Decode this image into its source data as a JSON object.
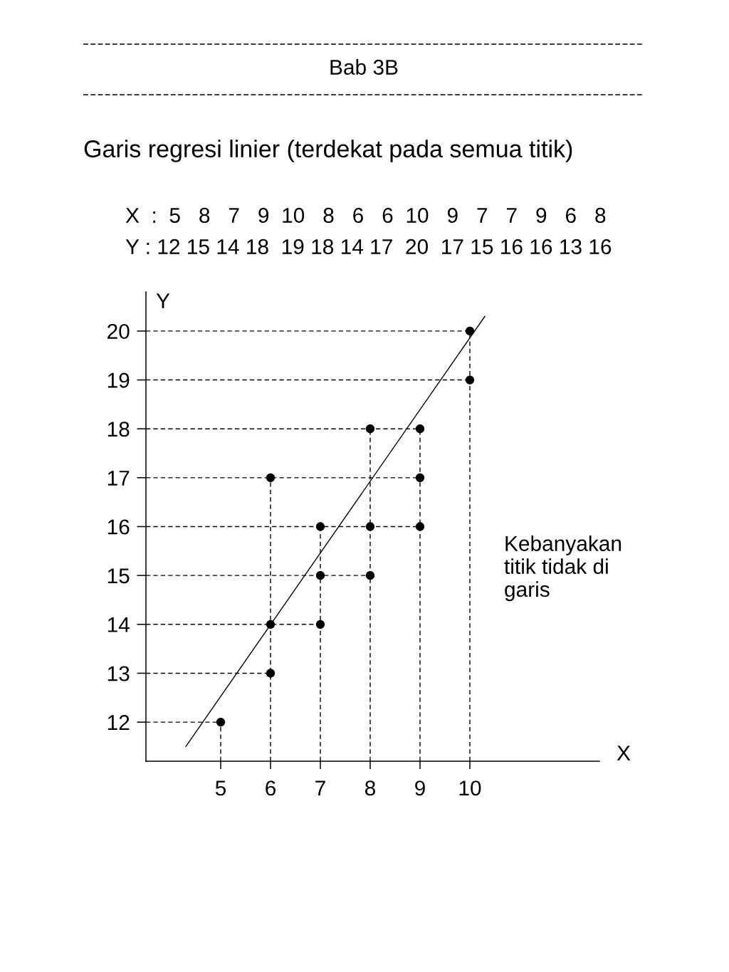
{
  "chart_data": {
    "type": "scatter",
    "title": "Bab 3B",
    "subtitle": "Garis regresi linier (terdekat pada semua titik)",
    "xlabel": "X",
    "ylabel": "Y",
    "series": [
      {
        "color": "#000000",
        "x": [
          5,
          8,
          7,
          9,
          10,
          8,
          6,
          6,
          10,
          9,
          7,
          7,
          9,
          6,
          8
        ],
        "values": [
          12,
          15,
          14,
          18,
          19,
          18,
          14,
          17,
          20,
          17,
          15,
          16,
          16,
          13,
          16
        ]
      },
      {
        "type": "line",
        "color": "#000000",
        "marker": "none",
        "x": [
          4.3,
          10.3
        ],
        "values": [
          11.5,
          20.3
        ]
      }
    ],
    "marker": "circle",
    "xlim": [
      3.5,
      12.6
    ],
    "ylim": [
      11.2,
      20.8
    ],
    "xticks": [
      5,
      6,
      7,
      8,
      9,
      10
    ],
    "yticks": [
      12,
      13,
      14,
      15,
      16,
      17,
      18,
      19,
      20
    ],
    "ref_lines": [
      {
        "axis": "y",
        "value": 12,
        "line_style": "dashed",
        "color": "#000000"
      },
      {
        "axis": "y",
        "value": 13,
        "line_style": "dashed",
        "color": "#000000"
      },
      {
        "axis": "y",
        "value": 14,
        "line_style": "dashed",
        "color": "#000000"
      },
      {
        "axis": "y",
        "value": 15,
        "line_style": "dashed",
        "color": "#000000"
      },
      {
        "axis": "y",
        "value": 16,
        "line_style": "dashed",
        "color": "#000000"
      },
      {
        "axis": "y",
        "value": 17,
        "line_style": "dashed",
        "color": "#000000"
      },
      {
        "axis": "y",
        "value": 18,
        "line_style": "dashed",
        "color": "#000000"
      },
      {
        "axis": "y",
        "value": 19,
        "line_style": "dashed",
        "color": "#000000"
      },
      {
        "axis": "y",
        "value": 20,
        "line_style": "dashed",
        "color": "#000000"
      },
      {
        "axis": "x",
        "value": 5,
        "line_style": "dashed",
        "color": "#000000"
      },
      {
        "axis": "x",
        "value": 6,
        "line_style": "dashed",
        "color": "#000000"
      },
      {
        "axis": "x",
        "value": 7,
        "line_style": "dashed",
        "color": "#000000"
      },
      {
        "axis": "x",
        "value": 8,
        "line_style": "dashed",
        "color": "#000000"
      },
      {
        "axis": "x",
        "value": 9,
        "line_style": "dashed",
        "color": "#000000"
      },
      {
        "axis": "x",
        "value": 10,
        "line_style": "dashed",
        "color": "#000000"
      }
    ],
    "annotations": [
      "X  :  5   8   7   9  10   8   6   6  10   9   7   7   9   6   8",
      "Y : 12 15 14 18  19 18 14 17  20  17 15 16 16 13 16",
      "Kebanyakan\ntitik tidak di\ngaris"
    ]
  }
}
